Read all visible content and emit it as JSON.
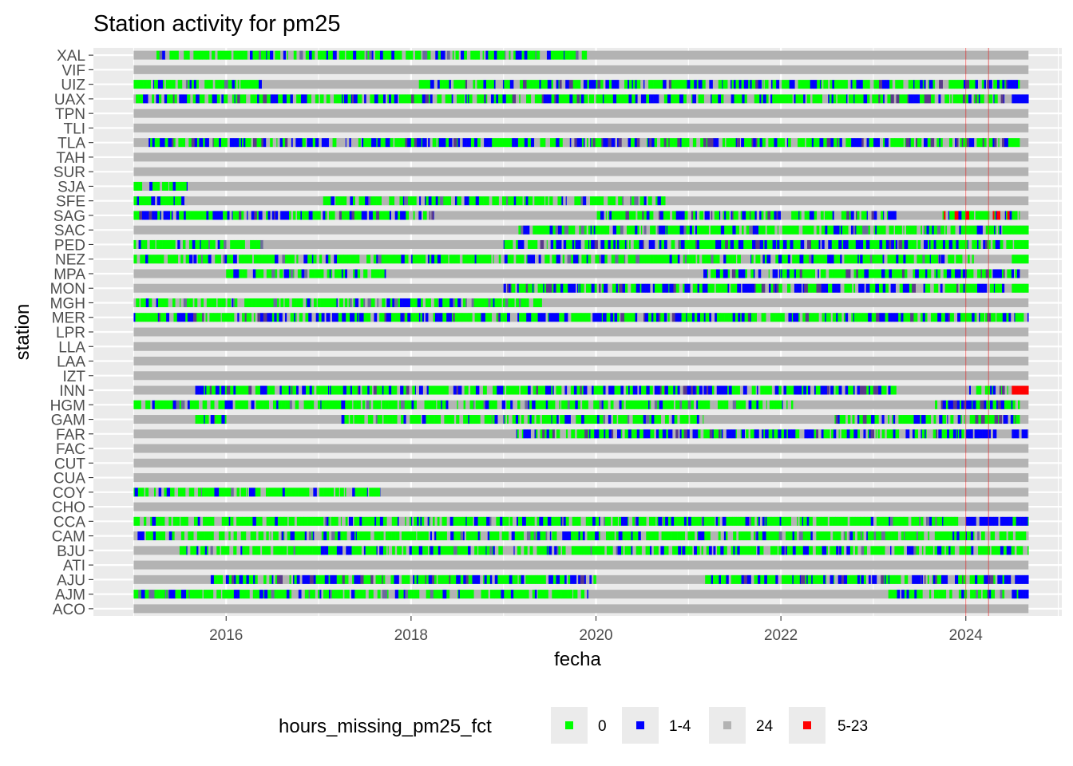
{
  "chart_data": {
    "type": "heatmap",
    "title": "Station activity for pm25",
    "xlabel": "fecha",
    "ylabel": "station",
    "x_range": [
      "2014-07-26",
      "2025-01-15"
    ],
    "data_span": [
      "2015-01-01",
      "2024-09-05"
    ],
    "x_ticks": [
      "2016",
      "2018",
      "2020",
      "2022",
      "2024"
    ],
    "stations": [
      "XAL",
      "VIF",
      "UIZ",
      "UAX",
      "TPN",
      "TLI",
      "TLA",
      "TAH",
      "SUR",
      "SJA",
      "SFE",
      "SAG",
      "SAC",
      "PED",
      "NEZ",
      "MPA",
      "MON",
      "MGH",
      "MER",
      "LPR",
      "LLA",
      "LAA",
      "IZT",
      "INN",
      "HGM",
      "GAM",
      "FAR",
      "FAC",
      "CUT",
      "CUA",
      "COY",
      "CHO",
      "CCA",
      "CAM",
      "BJU",
      "ATI",
      "AJU",
      "AJM",
      "ACO"
    ],
    "legend": {
      "title": "hours_missing_pm25_fct",
      "position": "bottom",
      "entries": [
        {
          "label": "0",
          "color": "#00ff00"
        },
        {
          "label": "1-4",
          "color": "#0000ff"
        },
        {
          "label": "24",
          "color": "#b3b3b3"
        },
        {
          "label": "5-23",
          "color": "#ff0000"
        }
      ]
    },
    "activity_periods": {
      "XAL": [
        [
          "2015-04-01",
          "2019-12-01",
          "mix-g"
        ]
      ],
      "UIZ": [
        [
          "2015-01-01",
          "2016-06-01",
          "mix-g"
        ],
        [
          "2018-02-01",
          "2024-08-01",
          "mix-b"
        ]
      ],
      "UAX": [
        [
          "2015-01-01",
          "2024-06-01",
          "mix-b"
        ],
        [
          "2024-07-01",
          "2024-09-05",
          "blue"
        ]
      ],
      "TLA": [
        [
          "2015-03-01",
          "2024-08-01",
          "mix-b"
        ]
      ],
      "SJA": [
        [
          "2015-01-01",
          "2015-08-01",
          "mix-g"
        ]
      ],
      "SFE": [
        [
          "2015-01-01",
          "2015-08-01",
          "mix-b"
        ],
        [
          "2017-01-01",
          "2020-10-01",
          "mix-g"
        ]
      ],
      "SAG": [
        [
          "2015-01-01",
          "2018-04-01",
          "mix-b"
        ],
        [
          "2020-01-01",
          "2023-04-01",
          "mix-b"
        ],
        [
          "2023-10-01",
          "2024-08-01",
          "mix-r"
        ]
      ],
      "SAC": [
        [
          "2019-03-01",
          "2024-06-01",
          "mix-g"
        ],
        [
          "2024-06-01",
          "2024-09-05",
          "green"
        ]
      ],
      "PED": [
        [
          "2015-01-01",
          "2016-06-01",
          "mix-g"
        ],
        [
          "2019-01-01",
          "2024-08-01",
          "mix-b"
        ],
        [
          "2024-08-01",
          "2024-09-05",
          "green"
        ]
      ],
      "NEZ": [
        [
          "2015-01-01",
          "2024-02-01",
          "mix-g"
        ],
        [
          "2024-07-01",
          "2024-09-05",
          "green"
        ]
      ],
      "MPA": [
        [
          "2016-01-01",
          "2017-10-01",
          "mix-g"
        ],
        [
          "2021-03-01",
          "2024-08-01",
          "mix-b"
        ]
      ],
      "MON": [
        [
          "2019-01-01",
          "2024-06-01",
          "mix-b"
        ],
        [
          "2024-07-01",
          "2024-09-05",
          "green"
        ]
      ],
      "MGH": [
        [
          "2015-01-01",
          "2019-06-01",
          "mix-g"
        ]
      ],
      "MER": [
        [
          "2015-01-01",
          "2024-09-05",
          "mix-b"
        ]
      ],
      "INN": [
        [
          "2015-09-01",
          "2023-04-01",
          "mix-b"
        ],
        [
          "2024-01-01",
          "2024-07-01",
          "mix-b"
        ],
        [
          "2024-07-01",
          "2024-09-05",
          "red"
        ]
      ],
      "HGM": [
        [
          "2015-01-01",
          "2022-03-01",
          "mix-g"
        ],
        [
          "2023-09-01",
          "2024-08-01",
          "mix-b"
        ]
      ],
      "GAM": [
        [
          "2015-09-01",
          "2016-01-01",
          "mix-b"
        ],
        [
          "2017-04-01",
          "2021-03-01",
          "mix-g"
        ],
        [
          "2022-08-01",
          "2024-08-01",
          "mix-b"
        ]
      ],
      "FAR": [
        [
          "2019-02-01",
          "2024-03-01",
          "mix-b"
        ],
        [
          "2024-01-01",
          "2024-05-01",
          "blue"
        ],
        [
          "2024-07-01",
          "2024-09-05",
          "blue"
        ]
      ],
      "COY": [
        [
          "2015-01-01",
          "2017-09-01",
          "mix-g"
        ]
      ],
      "CCA": [
        [
          "2015-01-01",
          "2023-12-01",
          "mix-g"
        ],
        [
          "2024-01-01",
          "2024-09-05",
          "blue"
        ]
      ],
      "CAM": [
        [
          "2015-01-01",
          "2024-09-05",
          "mix-g"
        ]
      ],
      "BJU": [
        [
          "2015-07-01",
          "2024-09-05",
          "mix-g"
        ]
      ],
      "AJU": [
        [
          "2015-11-01",
          "2020-01-01",
          "mix-b"
        ],
        [
          "2021-03-01",
          "2024-06-01",
          "mix-b"
        ],
        [
          "2024-06-01",
          "2024-09-05",
          "blue"
        ]
      ],
      "AJM": [
        [
          "2015-01-01",
          "2019-12-01",
          "mix-g"
        ],
        [
          "2023-03-01",
          "2024-06-01",
          "mix-g"
        ],
        [
          "2024-07-01",
          "2024-09-05",
          "blue"
        ]
      ]
    },
    "reference_lines": [
      "2024-01-01",
      "2024-03-31"
    ],
    "grid": true
  }
}
